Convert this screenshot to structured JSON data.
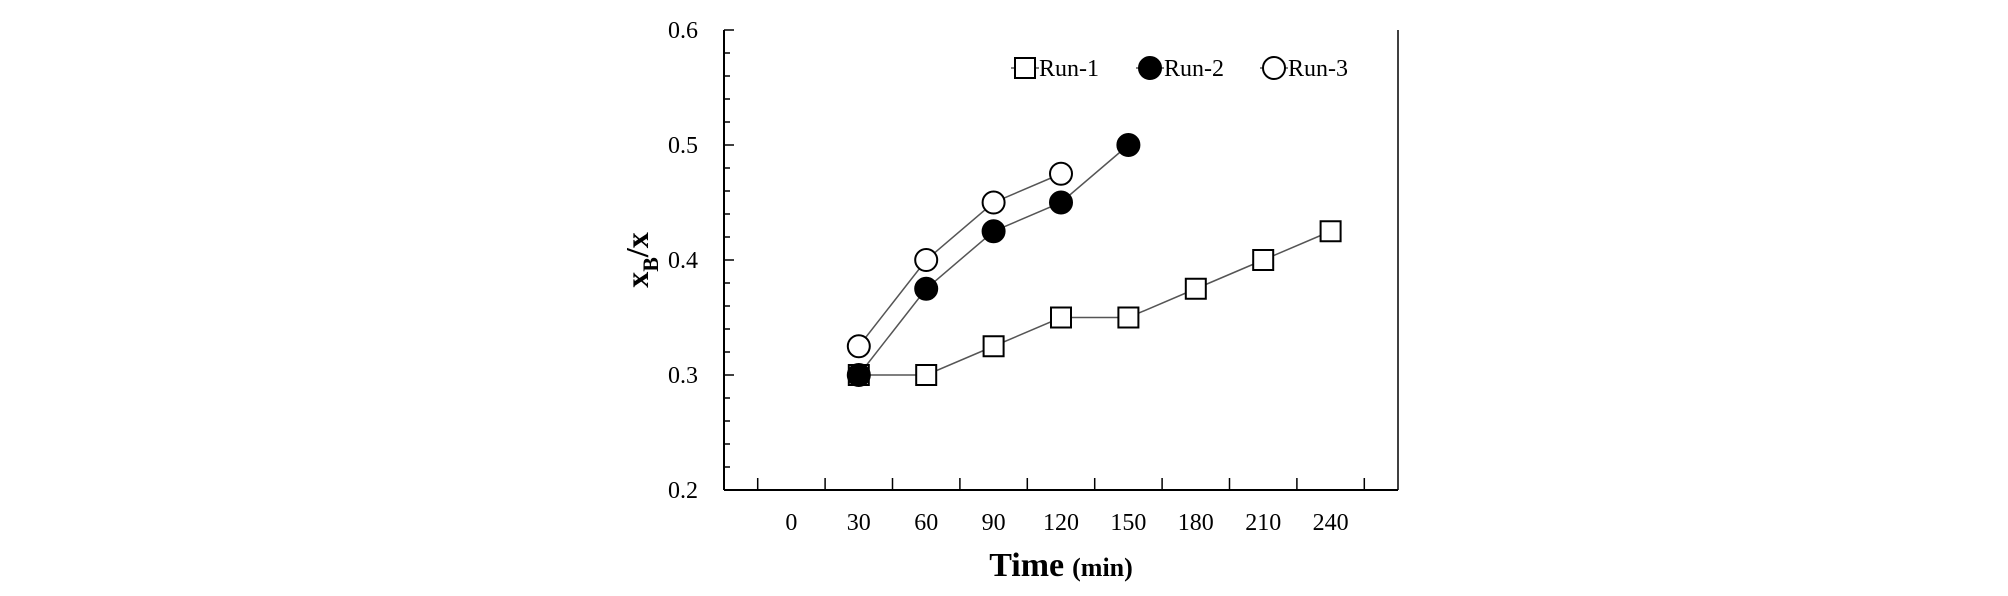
{
  "chart_data": {
    "type": "line",
    "xlabel": "Time",
    "xlabel_unit": "(min)",
    "ylabel_main": "x",
    "ylabel_sub": "B",
    "ylabel_rest": "/x",
    "xlim": [
      0,
      240
    ],
    "ylim": [
      0.2,
      0.6
    ],
    "xticks": [
      0,
      30,
      60,
      90,
      120,
      150,
      180,
      210,
      240
    ],
    "xtick_labels": [
      "0",
      "30",
      "60",
      "90",
      "120",
      "150",
      "180",
      "210",
      "240"
    ],
    "yticks": [
      0.2,
      0.3,
      0.4,
      0.5,
      0.6
    ],
    "ytick_labels": [
      "0.2",
      "0.3",
      "0.4",
      "0.5",
      "0.6"
    ],
    "grid": false,
    "legend_position": "top-right",
    "series": [
      {
        "name": "Run-1",
        "marker": "open-square",
        "x": [
          30,
          60,
          90,
          120,
          150,
          180,
          210,
          240
        ],
        "y": [
          0.3,
          0.3,
          0.325,
          0.35,
          0.35,
          0.375,
          0.4,
          0.425
        ]
      },
      {
        "name": "Run-2",
        "marker": "filled-circle",
        "x": [
          30,
          60,
          90,
          120,
          150
        ],
        "y": [
          0.3,
          0.375,
          0.425,
          0.45,
          0.5
        ]
      },
      {
        "name": "Run-3",
        "marker": "open-circle",
        "x": [
          30,
          60,
          90,
          120
        ],
        "y": [
          0.325,
          0.4,
          0.45,
          0.475
        ]
      }
    ],
    "colors": {
      "line": "#555555",
      "marker": "#000000",
      "fill": "#ffffff"
    }
  }
}
